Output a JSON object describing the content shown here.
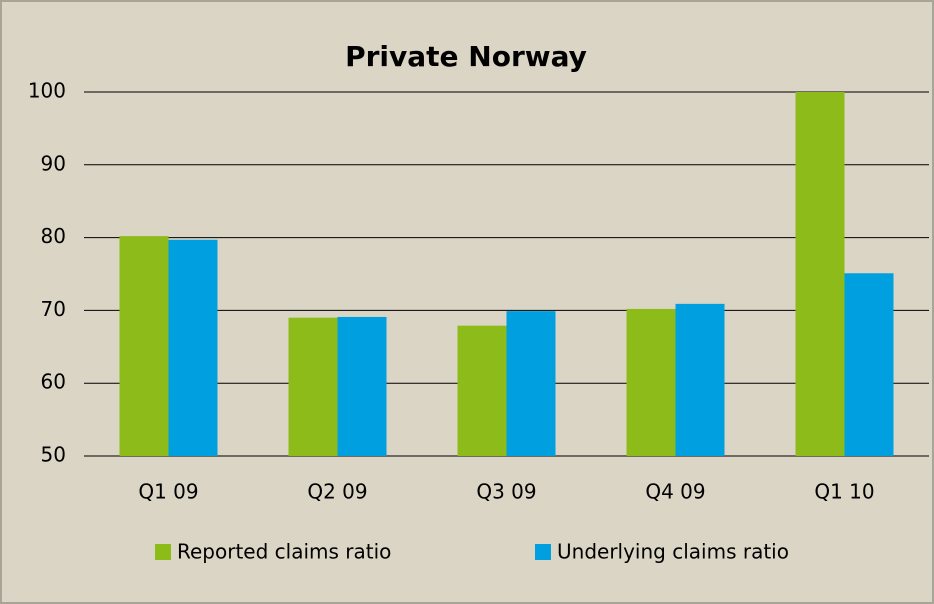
{
  "chart_data": {
    "type": "bar",
    "title": "Private Norway",
    "categories": [
      "Q1 09",
      "Q2 09",
      "Q3 09",
      "Q4 09",
      "Q1 10"
    ],
    "series": [
      {
        "name": "Reported claims ratio",
        "color": "#8cbb1a",
        "values": [
          80.2,
          69.0,
          67.9,
          70.2,
          100
        ]
      },
      {
        "name": "Underlying claims ratio",
        "color": "#009fe0",
        "values": [
          79.7,
          69.1,
          69.9,
          70.9,
          75.1
        ]
      }
    ],
    "ylim": [
      50,
      100
    ],
    "yticks": [
      50,
      60,
      70,
      80,
      90,
      100
    ],
    "grid": true
  }
}
